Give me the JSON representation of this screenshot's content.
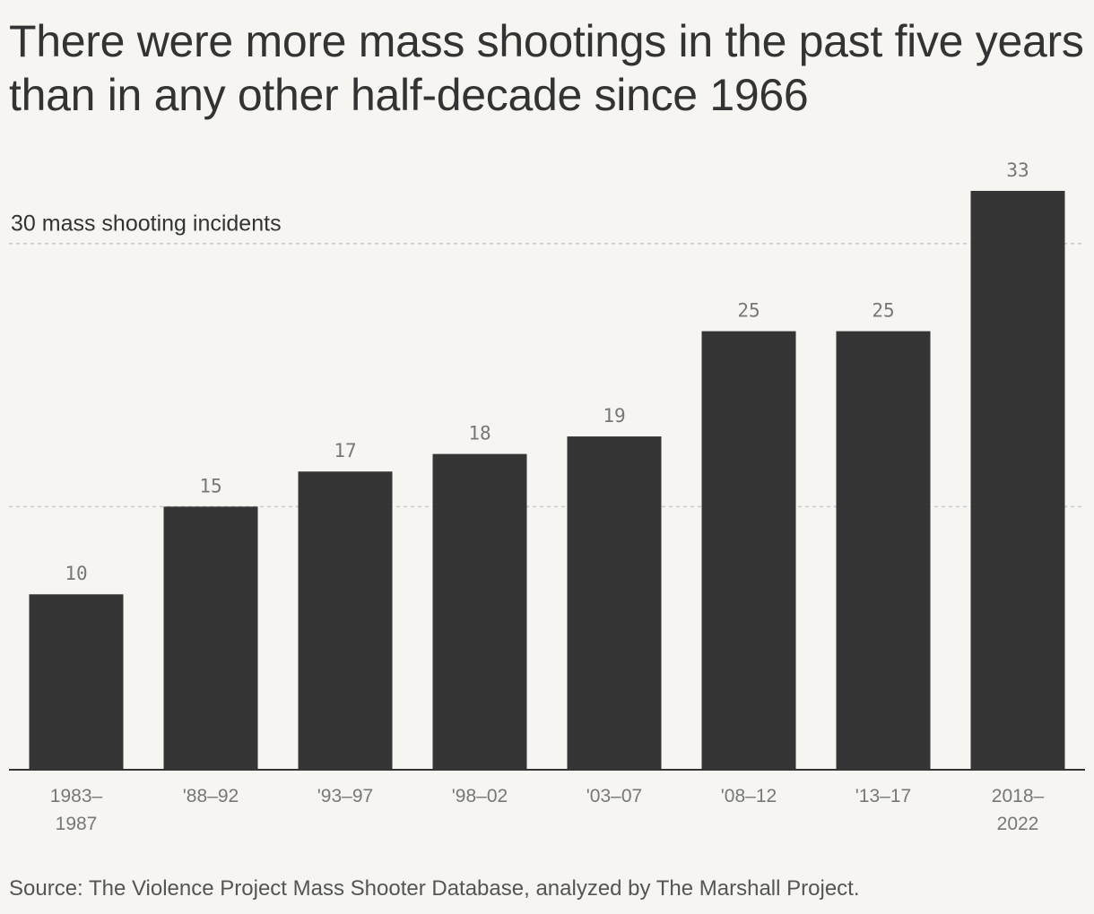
{
  "title": "There were more mass shootings in the past five years than in any other half-decade since 1966",
  "source": "Source: The Violence Project Mass Shooter Database, analyzed by The Marshall Project.",
  "colors": {
    "bar": "#353535",
    "background": "#f6f5f2",
    "gridline": "#c8c8c8",
    "axis": "#333333"
  },
  "chart_data": {
    "type": "bar",
    "categories": [
      [
        "1983–",
        "1987"
      ],
      [
        "'88–92"
      ],
      [
        "'93–97"
      ],
      [
        "'98–02"
      ],
      [
        "'03–07"
      ],
      [
        "'08–12"
      ],
      [
        "'13–17"
      ],
      [
        "2018–",
        "2022"
      ]
    ],
    "values": [
      10,
      15,
      17,
      18,
      19,
      25,
      25,
      33
    ],
    "value_labels": [
      "10",
      "15",
      "17",
      "18",
      "19",
      "25",
      "25",
      "33"
    ],
    "ylim": [
      0,
      33
    ],
    "gridlines": [
      15,
      30
    ],
    "gridline_label": {
      "value": 30,
      "text": "30 mass shooting incidents"
    },
    "xlabel": "",
    "ylabel": "",
    "grid": true,
    "legend": "none"
  }
}
